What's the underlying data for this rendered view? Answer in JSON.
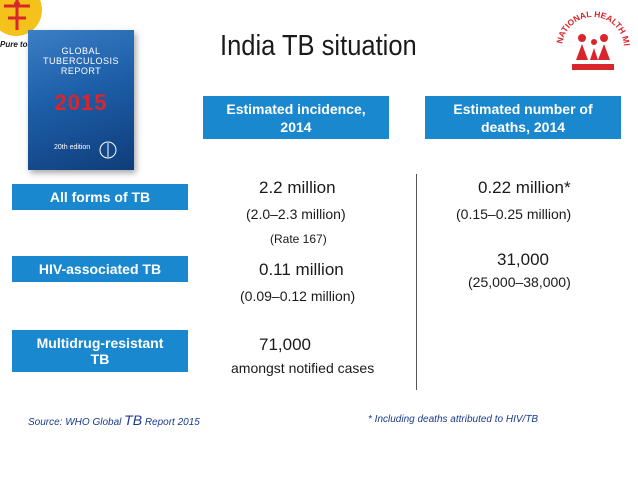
{
  "logo_left_text": "Pure tour",
  "cover": {
    "line1": "GLOBAL",
    "line2": "TUBERCULOSIS",
    "line3": "REPORT",
    "year": "2015",
    "edition": "20th edition"
  },
  "title": "India TB situation",
  "columns": {
    "incidence_line1": "Estimated incidence,",
    "incidence_line2": "2014",
    "deaths_line1": "Estimated number of",
    "deaths_line2": "deaths, 2014"
  },
  "rows": {
    "all_forms": {
      "label": "All forms of TB",
      "incidence": "2.2 million",
      "incidence_range": "(2.0–2.3 million)",
      "incidence_rate": "(Rate  167)",
      "deaths": "0.22 million*",
      "deaths_range": "(0.15–0.25 million)"
    },
    "hiv": {
      "label": "HIV-associated TB",
      "incidence": "0.11 million",
      "incidence_range": "(0.09–0.12 million)",
      "deaths": "31,000",
      "deaths_range": "(25,000–38,000)"
    },
    "mdr": {
      "label_line1": "Multidrug-resistant",
      "label_line2": "TB",
      "incidence": "71,000",
      "incidence_note": "amongst notified cases"
    }
  },
  "footer": {
    "source_prefix": "Source: WHO Global ",
    "source_tb": "TB",
    "source_suffix": " Report 2015",
    "note": "* Including deaths attributed to HIV/TB"
  },
  "colors": {
    "header_blue": "#1a88cf",
    "footer_text": "#1a3b8c",
    "cover_red": "#d8262c"
  }
}
